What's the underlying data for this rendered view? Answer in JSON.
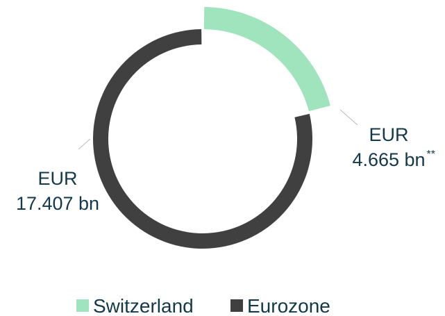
{
  "chart_data": {
    "type": "donut",
    "categories": [
      "Switzerland",
      "Eurozone"
    ],
    "values": [
      4.665,
      17.407
    ],
    "value_labels": [
      [
        "EUR",
        "4.665 bn"
      ],
      [
        "EUR",
        "17.407 bn"
      ]
    ],
    "value_label_note": "**",
    "colors": [
      "#9fe4bd",
      "#404040"
    ],
    "legend": "bottom"
  }
}
